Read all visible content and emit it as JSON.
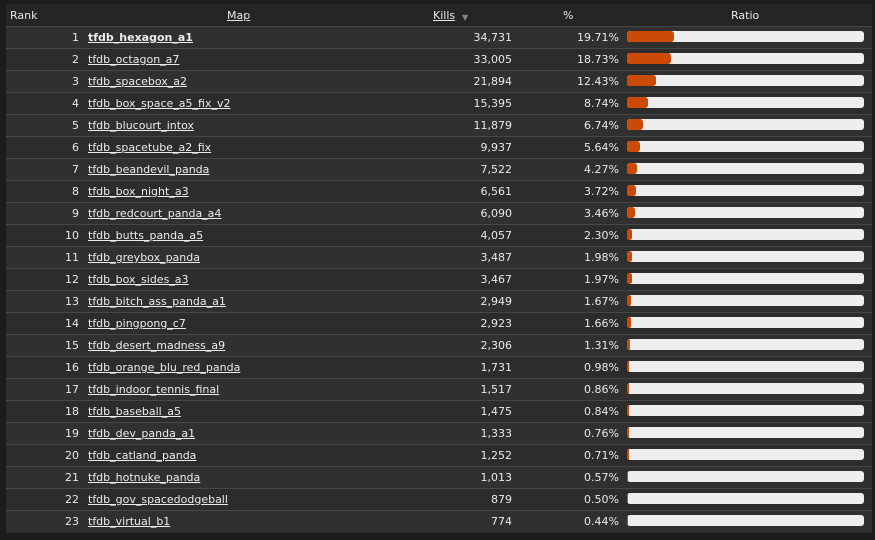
{
  "columns": {
    "rank": "Rank",
    "map": "Map",
    "kills": "Kills",
    "sort_icon": "▼",
    "percent": "%",
    "ratio": "Ratio"
  },
  "colors": {
    "bar_fill": "#cc4a06",
    "bar_track": "#eeeeee"
  },
  "rows": [
    {
      "rank": "1",
      "map": "tfdb_hexagon_a1",
      "kills": "34,731",
      "percent": "19.71%",
      "ratio": 0.1971
    },
    {
      "rank": "2",
      "map": "tfdb_octagon_a7",
      "kills": "33,005",
      "percent": "18.73%",
      "ratio": 0.1873
    },
    {
      "rank": "3",
      "map": "tfdb_spacebox_a2",
      "kills": "21,894",
      "percent": "12.43%",
      "ratio": 0.1243
    },
    {
      "rank": "4",
      "map": "tfdb_box_space_a5_fix_v2",
      "kills": "15,395",
      "percent": "8.74%",
      "ratio": 0.0874
    },
    {
      "rank": "5",
      "map": "tfdb_blucourt_intox",
      "kills": "11,879",
      "percent": "6.74%",
      "ratio": 0.0674
    },
    {
      "rank": "6",
      "map": "tfdb_spacetube_a2_fix",
      "kills": "9,937",
      "percent": "5.64%",
      "ratio": 0.0564
    },
    {
      "rank": "7",
      "map": "tfdb_beandevil_panda",
      "kills": "7,522",
      "percent": "4.27%",
      "ratio": 0.0427
    },
    {
      "rank": "8",
      "map": "tfdb_box_night_a3",
      "kills": "6,561",
      "percent": "3.72%",
      "ratio": 0.0372
    },
    {
      "rank": "9",
      "map": "tfdb_redcourt_panda_a4",
      "kills": "6,090",
      "percent": "3.46%",
      "ratio": 0.0346
    },
    {
      "rank": "10",
      "map": "tfdb_butts_panda_a5",
      "kills": "4,057",
      "percent": "2.30%",
      "ratio": 0.023
    },
    {
      "rank": "11",
      "map": "tfdb_greybox_panda",
      "kills": "3,487",
      "percent": "1.98%",
      "ratio": 0.0198
    },
    {
      "rank": "12",
      "map": "tfdb_box_sides_a3",
      "kills": "3,467",
      "percent": "1.97%",
      "ratio": 0.0197
    },
    {
      "rank": "13",
      "map": "tfdb_bitch_ass_panda_a1",
      "kills": "2,949",
      "percent": "1.67%",
      "ratio": 0.0167
    },
    {
      "rank": "14",
      "map": "tfdb_pingpong_c7",
      "kills": "2,923",
      "percent": "1.66%",
      "ratio": 0.0166
    },
    {
      "rank": "15",
      "map": "tfdb_desert_madness_a9",
      "kills": "2,306",
      "percent": "1.31%",
      "ratio": 0.0131
    },
    {
      "rank": "16",
      "map": "tfdb_orange_blu_red_panda",
      "kills": "1,731",
      "percent": "0.98%",
      "ratio": 0.0098
    },
    {
      "rank": "17",
      "map": "tfdb_indoor_tennis_final",
      "kills": "1,517",
      "percent": "0.86%",
      "ratio": 0.0086
    },
    {
      "rank": "18",
      "map": "tfdb_baseball_a5",
      "kills": "1,475",
      "percent": "0.84%",
      "ratio": 0.0084
    },
    {
      "rank": "19",
      "map": "tfdb_dev_panda_a1",
      "kills": "1,333",
      "percent": "0.76%",
      "ratio": 0.0076
    },
    {
      "rank": "20",
      "map": "tfdb_catland_panda",
      "kills": "1,252",
      "percent": "0.71%",
      "ratio": 0.0071
    },
    {
      "rank": "21",
      "map": "tfdb_hotnuke_panda",
      "kills": "1,013",
      "percent": "0.57%",
      "ratio": 0.0057
    },
    {
      "rank": "22",
      "map": "tfdb_gov_spacedodgeball",
      "kills": "879",
      "percent": "0.50%",
      "ratio": 0.005
    },
    {
      "rank": "23",
      "map": "tfdb_virtual_b1",
      "kills": "774",
      "percent": "0.44%",
      "ratio": 0.0044
    }
  ]
}
